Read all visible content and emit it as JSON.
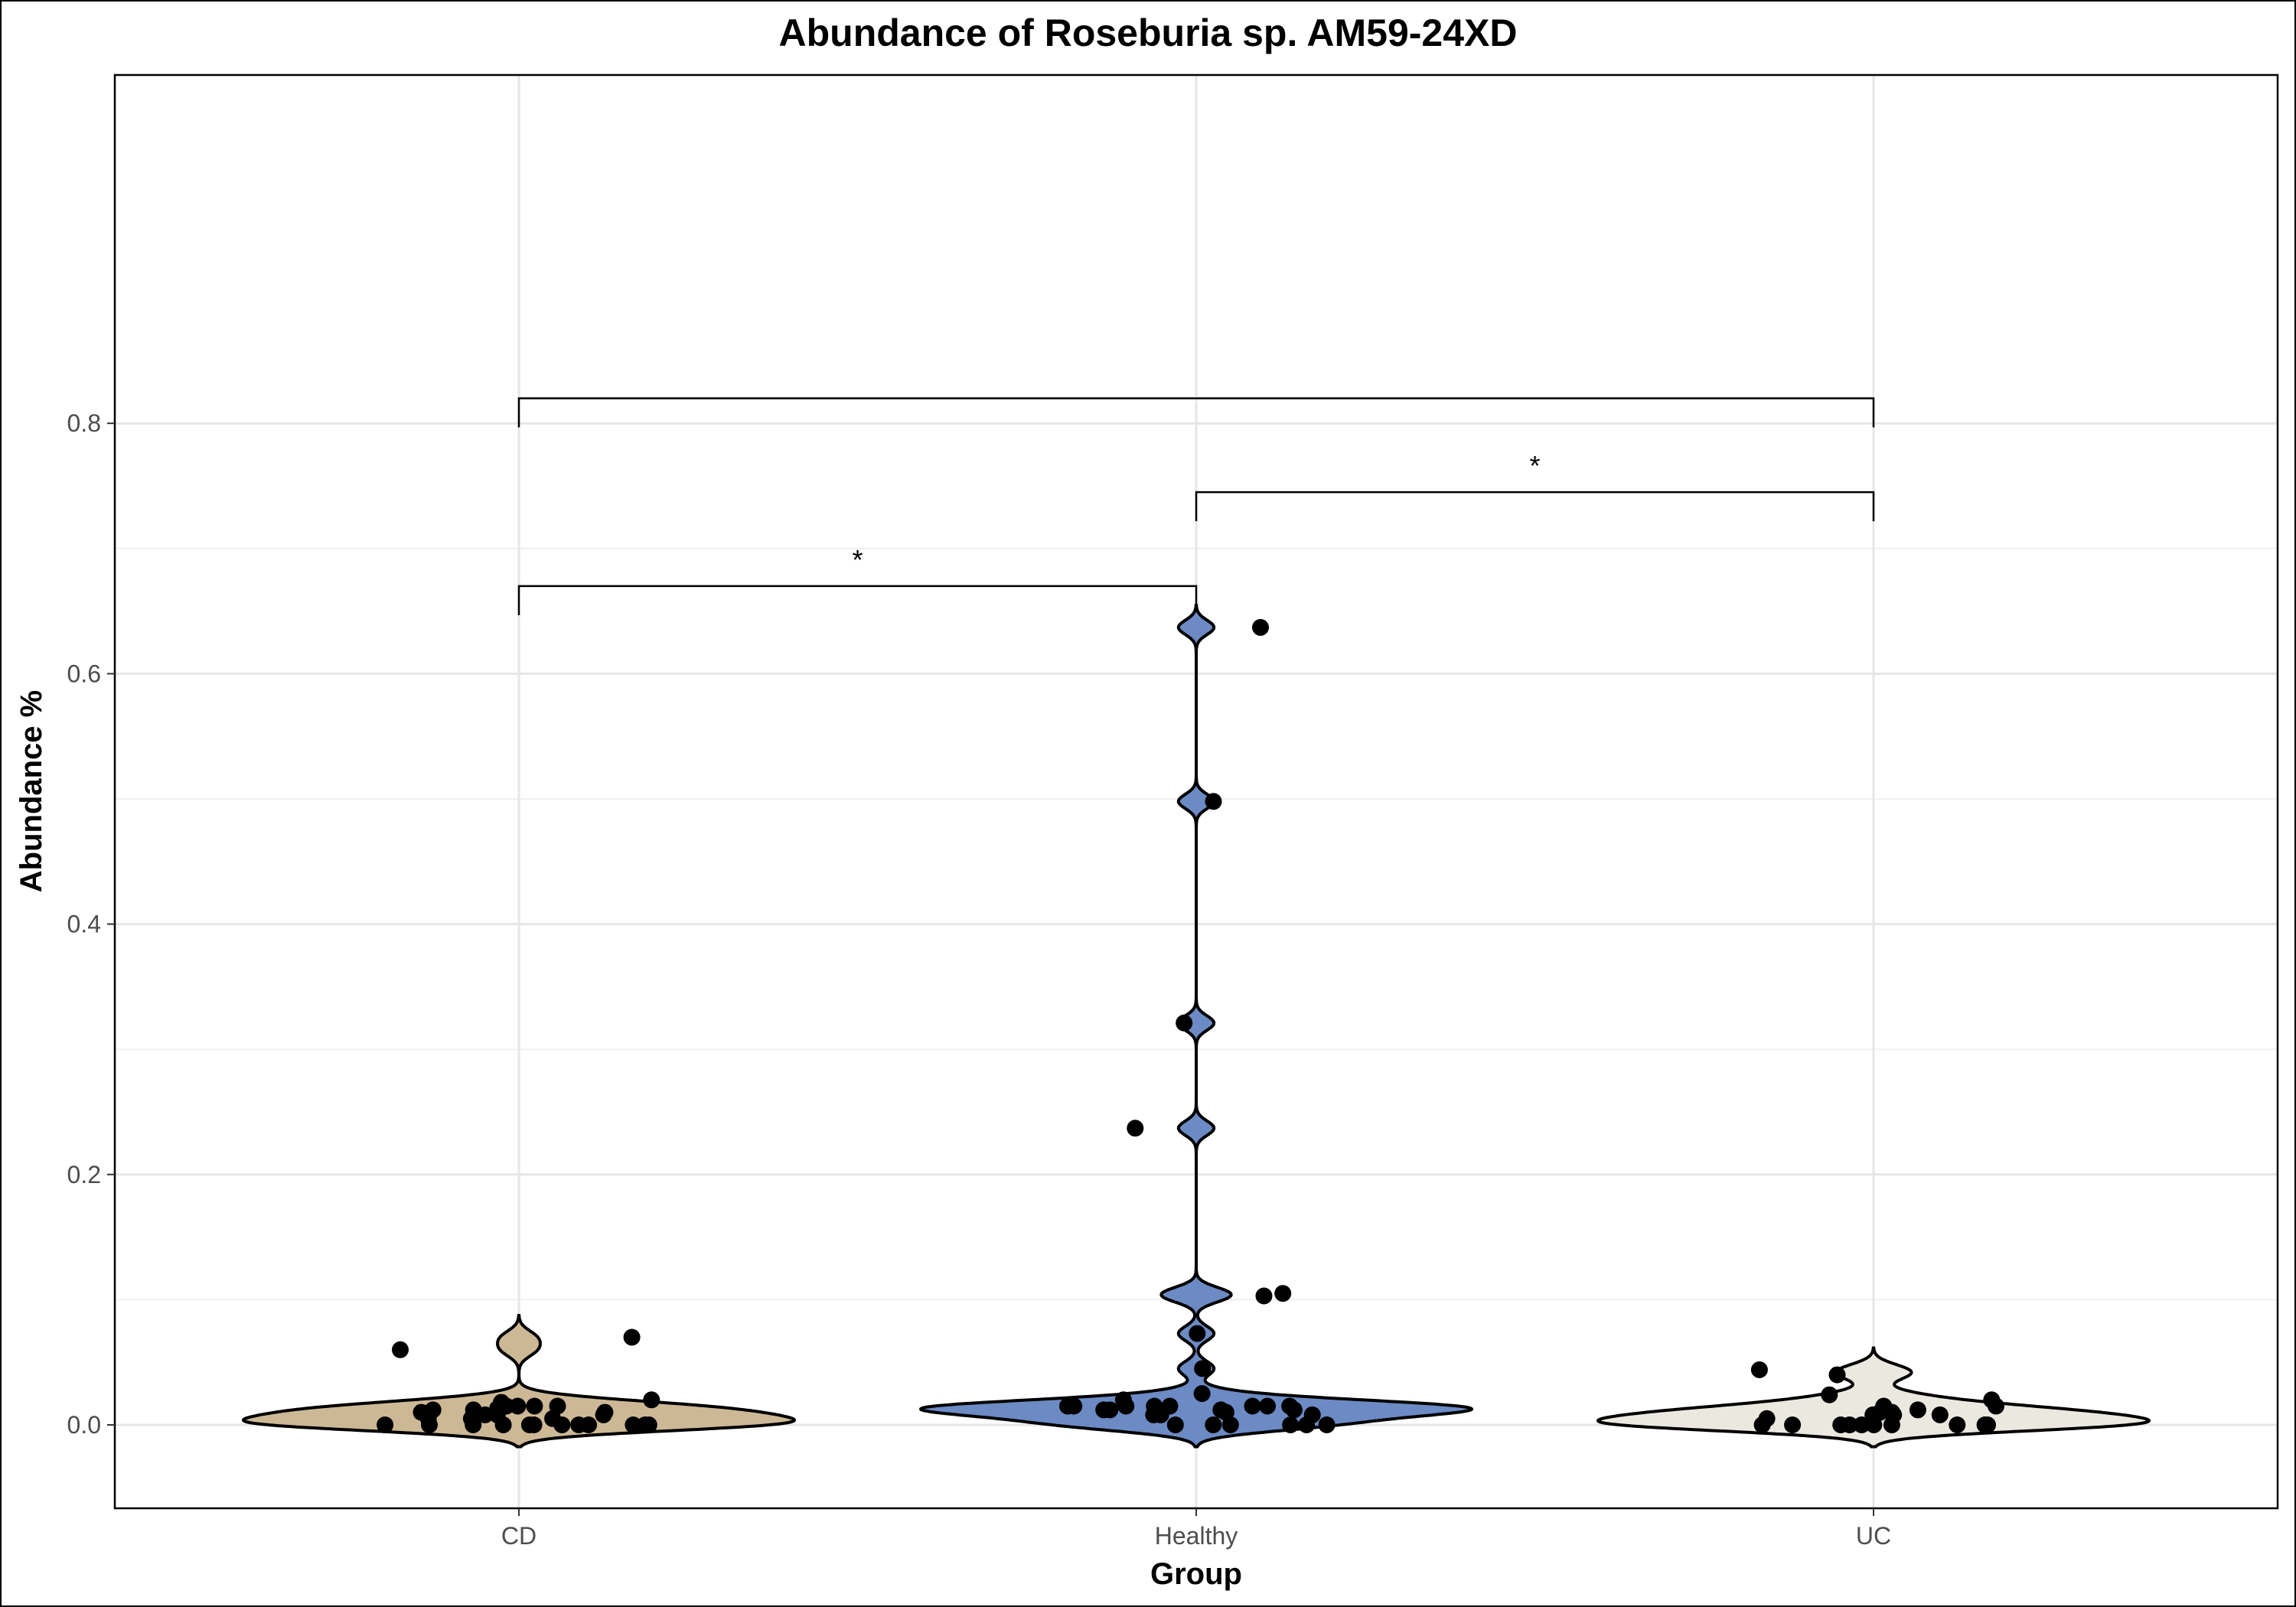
{
  "chart_data": {
    "type": "violin",
    "title": "Abundance of Roseburia sp. AM59-24XD",
    "xlabel": "Group",
    "ylabel": "Abundance %",
    "categories": [
      "CD",
      "Healthy",
      "UC"
    ],
    "ylim": [
      -0.05,
      0.86
    ],
    "yticks": [
      0.0,
      0.2,
      0.4,
      0.6,
      0.8
    ],
    "ytick_labels": [
      "0.0",
      "0.2",
      "0.4",
      "0.6",
      "0.8"
    ],
    "grid": true,
    "series": [
      {
        "group": "CD",
        "color": "#cdb896",
        "values": [
          0.07,
          0.06,
          0.015,
          0.008,
          0.015,
          0.005,
          0.0,
          0.0,
          0.0,
          0.0,
          0.01,
          0.012,
          0.02,
          0.008,
          0.0,
          0.0,
          0.018,
          0.015,
          0.005,
          0.0,
          0.0,
          0.0,
          0.008,
          0.01,
          0.012,
          0.015,
          0.0,
          0.005,
          0.013,
          0.0,
          0.0
        ]
      },
      {
        "group": "Healthy",
        "color": "#6c8ac4",
        "values": [
          0.637,
          0.498,
          0.321,
          0.237,
          0.105,
          0.103,
          0.073,
          0.045,
          0.025,
          0.015,
          0.012,
          0.01,
          0.015,
          0.015,
          0.008,
          0.0,
          0.015,
          0.0,
          0.015,
          0.012,
          0.0,
          0.015,
          0.0,
          0.008,
          0.02,
          0.015,
          0.012,
          0.0,
          0.012,
          0.015,
          0.0,
          0.008
        ]
      },
      {
        "group": "UC",
        "color": "#ebe8e0",
        "values": [
          0.044,
          0.04,
          0.024,
          0.02,
          0.015,
          0.01,
          0.01,
          0.008,
          0.0,
          0.0,
          0.0,
          0.0,
          0.0,
          0.008,
          0.012,
          0.015,
          0.0,
          0.0,
          0.0,
          0.01,
          0.008,
          0.005,
          0.0,
          0.0
        ]
      }
    ],
    "comparisons": [
      {
        "groups": [
          "CD",
          "Healthy"
        ],
        "label": "*",
        "y": 0.67
      },
      {
        "groups": [
          "Healthy",
          "UC"
        ],
        "label": "*",
        "y": 0.745
      },
      {
        "groups": [
          "CD",
          "UC"
        ],
        "label": "",
        "y": 0.82
      }
    ]
  }
}
